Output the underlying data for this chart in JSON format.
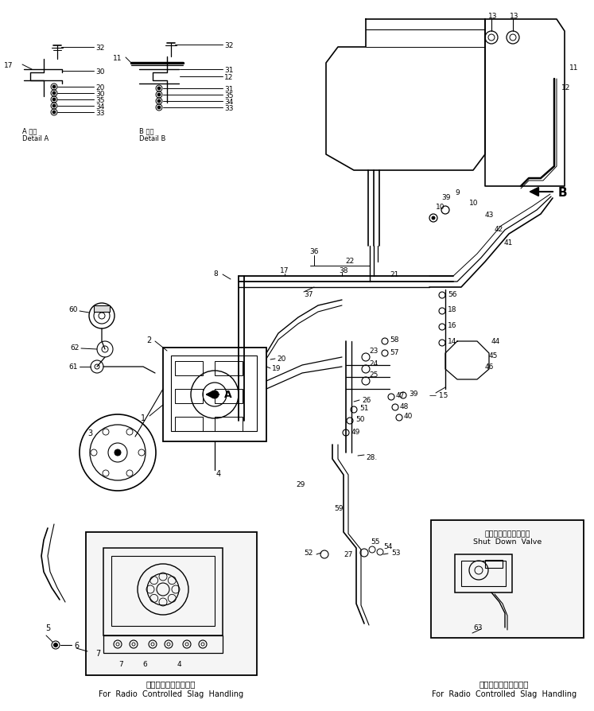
{
  "bg_color": "#ffffff",
  "line_color": "#000000",
  "figsize": [
    7.47,
    8.95
  ],
  "dpi": 100,
  "labels": {
    "bottom_left_jp": "ラジコン・ノロ処理用",
    "bottom_left_en": "For  Radio  Controlled  Slag  Handling",
    "bottom_right_jp": "ラジコン・ノロ処理用",
    "bottom_right_en": "For  Radio  Controlled  Slag  Handling",
    "detail_a_jp": "A 詳細",
    "detail_a_en": "Detail A",
    "detail_b_jp": "B 詳細",
    "detail_b_en": "Detail B",
    "shutdown_jp": "シャットダウンバルブ",
    "shutdown_en": "Shut  Down  Valve"
  }
}
